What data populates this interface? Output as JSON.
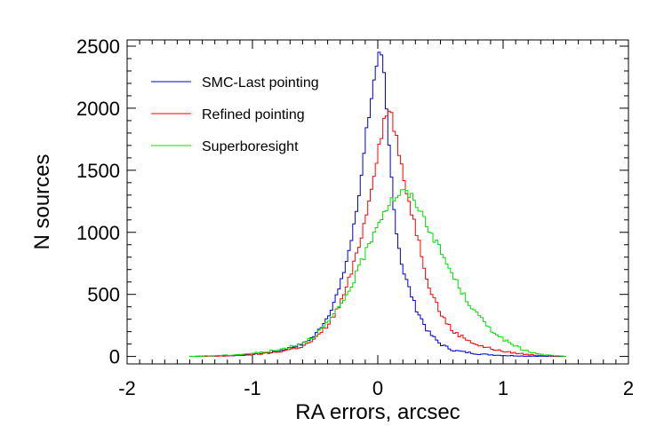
{
  "chart_data": {
    "type": "histogram-step",
    "xlabel": "RA errors, arcsec",
    "ylabel": "N sources",
    "xlim": [
      -2,
      2
    ],
    "ylim": [
      -60,
      2550
    ],
    "xticks": [
      -2,
      -1,
      0,
      1,
      2
    ],
    "yticks": [
      0,
      500,
      1000,
      1500,
      2000,
      2500
    ],
    "xtick_labels": [
      "-2",
      "-1",
      "0",
      "1",
      "2"
    ],
    "ytick_labels": [
      "0",
      "500",
      "1000",
      "1500",
      "2000",
      "2500"
    ],
    "grid": false,
    "legend_position": "top-left",
    "series": [
      {
        "name": "SMC-Last pointing",
        "color": "#0000cc",
        "x": [
          -1.5,
          -1.2,
          -1.0,
          -0.8,
          -0.6,
          -0.5,
          -0.4,
          -0.3,
          -0.2,
          -0.15,
          -0.1,
          -0.05,
          0.0,
          0.02,
          0.05,
          0.1,
          0.15,
          0.2,
          0.3,
          0.4,
          0.5,
          0.6,
          0.8,
          1.0,
          1.2,
          1.5
        ],
        "y": [
          0,
          5,
          15,
          40,
          100,
          170,
          320,
          560,
          980,
          1300,
          1750,
          2100,
          2350,
          2450,
          2250,
          1550,
          1000,
          700,
          400,
          200,
          100,
          50,
          20,
          8,
          3,
          0
        ]
      },
      {
        "name": "Refined pointing",
        "color": "#ff0000",
        "x": [
          -1.5,
          -1.2,
          -1.0,
          -0.8,
          -0.6,
          -0.5,
          -0.4,
          -0.3,
          -0.2,
          -0.1,
          0.0,
          0.05,
          0.1,
          0.15,
          0.2,
          0.3,
          0.4,
          0.5,
          0.6,
          0.8,
          1.0,
          1.2,
          1.5
        ],
        "y": [
          0,
          5,
          15,
          35,
          80,
          140,
          250,
          420,
          700,
          1100,
          1650,
          1900,
          2000,
          1750,
          1450,
          1050,
          600,
          350,
          200,
          90,
          40,
          15,
          0
        ]
      },
      {
        "name": "Superboresight",
        "color": "#00e000",
        "x": [
          -1.5,
          -1.2,
          -1.0,
          -0.8,
          -0.6,
          -0.5,
          -0.4,
          -0.3,
          -0.2,
          -0.1,
          0.0,
          0.1,
          0.2,
          0.25,
          0.3,
          0.4,
          0.5,
          0.6,
          0.7,
          0.8,
          0.9,
          1.0,
          1.1,
          1.2,
          1.3,
          1.5
        ],
        "y": [
          0,
          10,
          25,
          50,
          110,
          170,
          270,
          400,
          590,
          830,
          1080,
          1250,
          1330,
          1300,
          1250,
          1050,
          850,
          650,
          470,
          330,
          220,
          140,
          80,
          40,
          15,
          0
        ]
      }
    ]
  }
}
